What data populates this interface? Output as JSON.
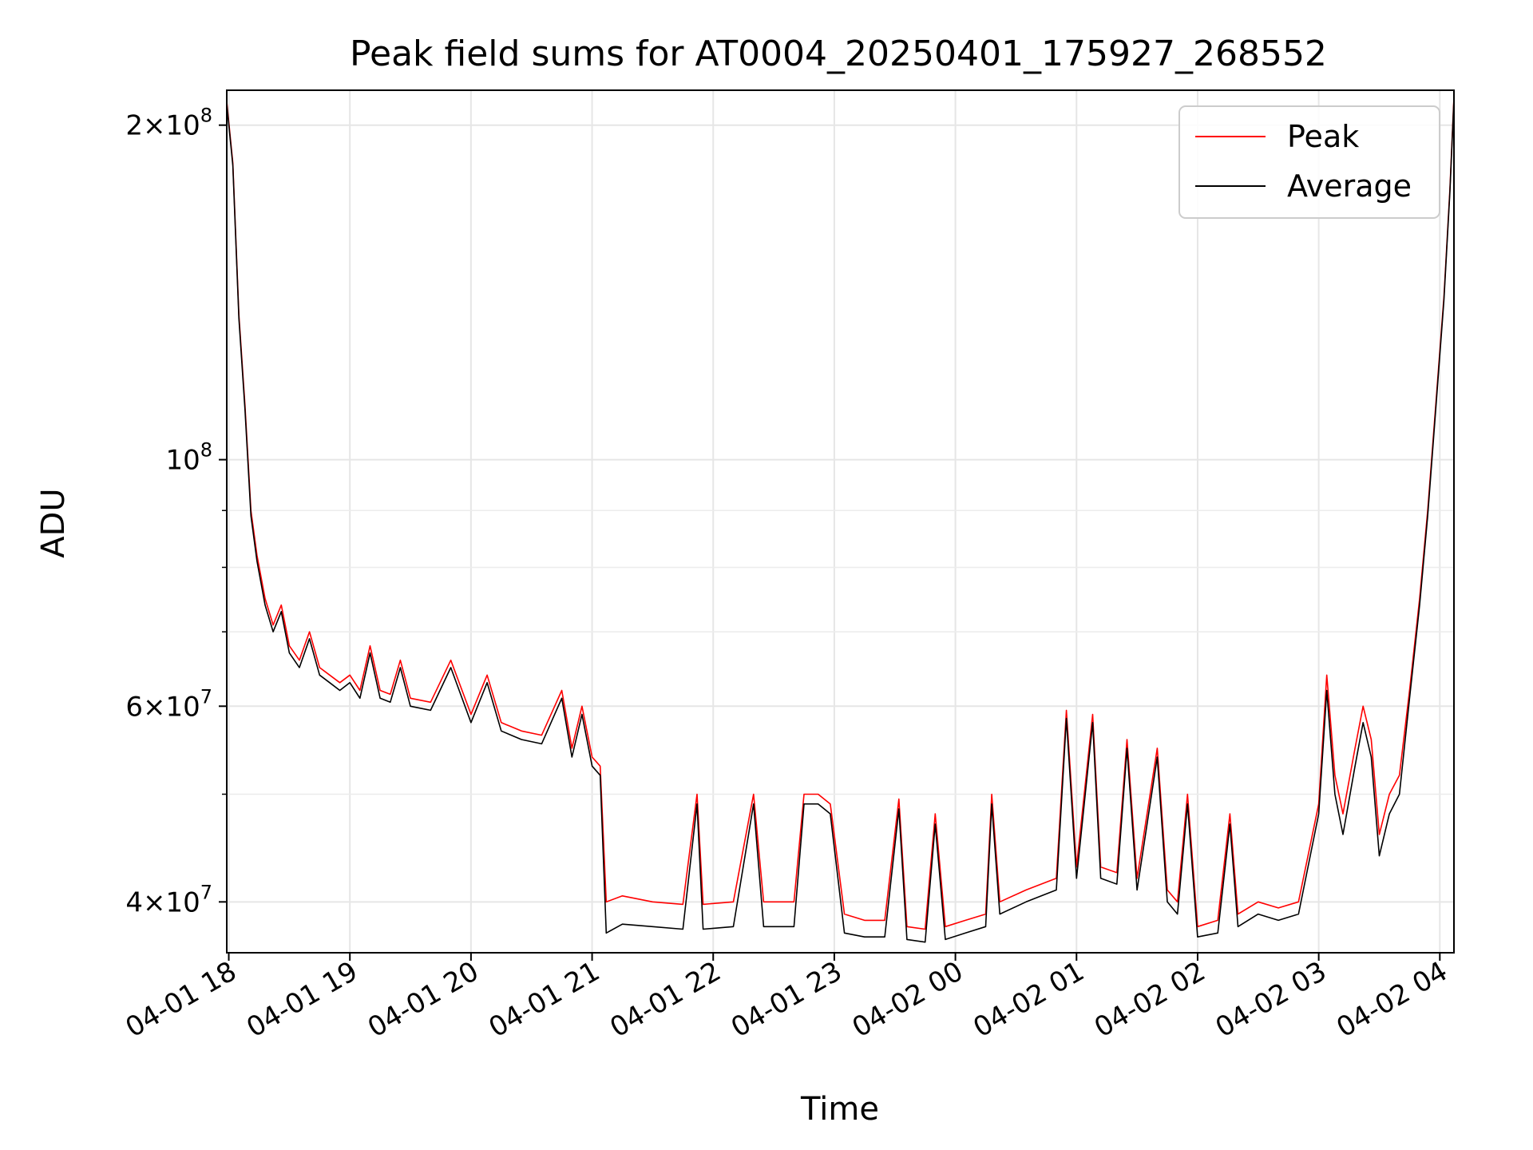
{
  "chart_data": {
    "type": "line",
    "title": "Peak field sums for AT0004_20250401_175927_268552",
    "xlabel": "Time",
    "ylabel": "ADU",
    "yscale": "log",
    "ylim": [
      36000000,
      215000000
    ],
    "xlim": [
      "2025-04-01 17:59",
      "2025-04-02 04:07"
    ],
    "x_ticks": [
      "04-01 18",
      "04-01 19",
      "04-01 20",
      "04-01 21",
      "04-01 22",
      "04-01 23",
      "04-02 00",
      "04-02 01",
      "04-02 02",
      "04-02 03",
      "04-02 04"
    ],
    "y_ticks": [
      {
        "value": 40000000,
        "mantissa": "4",
        "exponent": "7"
      },
      {
        "value": 60000000,
        "mantissa": "6",
        "exponent": "7"
      },
      {
        "value": 100000000,
        "mantissa": "",
        "exponent": "8"
      },
      {
        "value": 200000000,
        "mantissa": "2",
        "exponent": "8"
      }
    ],
    "grid": true,
    "legend_position": "top-right",
    "colors": {
      "peak": "#ff0000",
      "average": "#000000"
    },
    "series": [
      {
        "name": "Peak",
        "color": "#ff0000",
        "points": [
          [
            "2025-04-01 17:59",
            210000000
          ],
          [
            "2025-04-01 18:02",
            185000000
          ],
          [
            "2025-04-01 18:05",
            135000000
          ],
          [
            "2025-04-01 18:08",
            112000000
          ],
          [
            "2025-04-01 18:11",
            90000000
          ],
          [
            "2025-04-01 18:14",
            82000000
          ],
          [
            "2025-04-01 18:18",
            75000000
          ],
          [
            "2025-04-01 18:22",
            71000000
          ],
          [
            "2025-04-01 18:26",
            74000000
          ],
          [
            "2025-04-01 18:30",
            68000000
          ],
          [
            "2025-04-01 18:35",
            66000000
          ],
          [
            "2025-04-01 18:40",
            70000000
          ],
          [
            "2025-04-01 18:45",
            65000000
          ],
          [
            "2025-04-01 18:50",
            64000000
          ],
          [
            "2025-04-01 18:55",
            63000000
          ],
          [
            "2025-04-01 19:00",
            64000000
          ],
          [
            "2025-04-01 19:05",
            62000000
          ],
          [
            "2025-04-01 19:10",
            68000000
          ],
          [
            "2025-04-01 19:15",
            62000000
          ],
          [
            "2025-04-01 19:20",
            61500000
          ],
          [
            "2025-04-01 19:25",
            66000000
          ],
          [
            "2025-04-01 19:30",
            61000000
          ],
          [
            "2025-04-01 19:40",
            60500000
          ],
          [
            "2025-04-01 19:50",
            66000000
          ],
          [
            "2025-04-01 20:00",
            59000000
          ],
          [
            "2025-04-01 20:08",
            64000000
          ],
          [
            "2025-04-01 20:15",
            58000000
          ],
          [
            "2025-04-01 20:25",
            57000000
          ],
          [
            "2025-04-01 20:35",
            56500000
          ],
          [
            "2025-04-01 20:45",
            62000000
          ],
          [
            "2025-04-01 20:50",
            55000000
          ],
          [
            "2025-04-01 20:55",
            60000000
          ],
          [
            "2025-04-01 21:00",
            54000000
          ],
          [
            "2025-04-01 21:04",
            53000000
          ],
          [
            "2025-04-01 21:07",
            40000000
          ],
          [
            "2025-04-01 21:15",
            40500000
          ],
          [
            "2025-04-01 21:30",
            40000000
          ],
          [
            "2025-04-01 21:45",
            39800000
          ],
          [
            "2025-04-01 21:52",
            50000000
          ],
          [
            "2025-04-01 21:55",
            39800000
          ],
          [
            "2025-04-01 22:10",
            40000000
          ],
          [
            "2025-04-01 22:20",
            50000000
          ],
          [
            "2025-04-01 22:25",
            40000000
          ],
          [
            "2025-04-01 22:40",
            40000000
          ],
          [
            "2025-04-01 22:45",
            50000000
          ],
          [
            "2025-04-01 22:52",
            50000000
          ],
          [
            "2025-04-01 22:58",
            49000000
          ],
          [
            "2025-04-01 23:05",
            39000000
          ],
          [
            "2025-04-01 23:15",
            38500000
          ],
          [
            "2025-04-01 23:25",
            38500000
          ],
          [
            "2025-04-01 23:32",
            49500000
          ],
          [
            "2025-04-01 23:36",
            38000000
          ],
          [
            "2025-04-01 23:45",
            37800000
          ],
          [
            "2025-04-01 23:50",
            48000000
          ],
          [
            "2025-04-01 23:55",
            38000000
          ],
          [
            "2025-04-02 00:05",
            38500000
          ],
          [
            "2025-04-02 00:15",
            39000000
          ],
          [
            "2025-04-02 00:18",
            50000000
          ],
          [
            "2025-04-02 00:22",
            40000000
          ],
          [
            "2025-04-02 00:35",
            41000000
          ],
          [
            "2025-04-02 00:50",
            42000000
          ],
          [
            "2025-04-02 00:55",
            59500000
          ],
          [
            "2025-04-02 01:00",
            43000000
          ],
          [
            "2025-04-02 01:08",
            59000000
          ],
          [
            "2025-04-02 01:12",
            43000000
          ],
          [
            "2025-04-02 01:20",
            42500000
          ],
          [
            "2025-04-02 01:25",
            56000000
          ],
          [
            "2025-04-02 01:30",
            42000000
          ],
          [
            "2025-04-02 01:40",
            55000000
          ],
          [
            "2025-04-02 01:45",
            41000000
          ],
          [
            "2025-04-02 01:50",
            40000000
          ],
          [
            "2025-04-02 01:55",
            50000000
          ],
          [
            "2025-04-02 02:00",
            38000000
          ],
          [
            "2025-04-02 02:10",
            38500000
          ],
          [
            "2025-04-02 02:16",
            48000000
          ],
          [
            "2025-04-02 02:20",
            39000000
          ],
          [
            "2025-04-02 02:30",
            40000000
          ],
          [
            "2025-04-02 02:40",
            39500000
          ],
          [
            "2025-04-02 02:50",
            40000000
          ],
          [
            "2025-04-02 03:00",
            49000000
          ],
          [
            "2025-04-02 03:04",
            64000000
          ],
          [
            "2025-04-02 03:08",
            52000000
          ],
          [
            "2025-04-02 03:12",
            48000000
          ],
          [
            "2025-04-02 03:18",
            55000000
          ],
          [
            "2025-04-02 03:22",
            60000000
          ],
          [
            "2025-04-02 03:26",
            56000000
          ],
          [
            "2025-04-02 03:30",
            46000000
          ],
          [
            "2025-04-02 03:35",
            50000000
          ],
          [
            "2025-04-02 03:40",
            52000000
          ],
          [
            "2025-04-02 03:45",
            62000000
          ],
          [
            "2025-04-02 03:50",
            75000000
          ],
          [
            "2025-04-02 03:54",
            90000000
          ],
          [
            "2025-04-02 03:58",
            112000000
          ],
          [
            "2025-04-02 04:02",
            140000000
          ],
          [
            "2025-04-02 04:05",
            175000000
          ],
          [
            "2025-04-02 04:07",
            212000000
          ]
        ]
      },
      {
        "name": "Average",
        "color": "#000000",
        "points": [
          [
            "2025-04-01 17:59",
            209000000
          ],
          [
            "2025-04-01 18:02",
            184000000
          ],
          [
            "2025-04-01 18:05",
            134000000
          ],
          [
            "2025-04-01 18:08",
            111000000
          ],
          [
            "2025-04-01 18:11",
            89000000
          ],
          [
            "2025-04-01 18:14",
            81000000
          ],
          [
            "2025-04-01 18:18",
            74000000
          ],
          [
            "2025-04-01 18:22",
            70000000
          ],
          [
            "2025-04-01 18:26",
            73000000
          ],
          [
            "2025-04-01 18:30",
            67000000
          ],
          [
            "2025-04-01 18:35",
            65000000
          ],
          [
            "2025-04-01 18:40",
            69000000
          ],
          [
            "2025-04-01 18:45",
            64000000
          ],
          [
            "2025-04-01 18:50",
            63000000
          ],
          [
            "2025-04-01 18:55",
            62000000
          ],
          [
            "2025-04-01 19:00",
            63000000
          ],
          [
            "2025-04-01 19:05",
            61000000
          ],
          [
            "2025-04-01 19:10",
            67000000
          ],
          [
            "2025-04-01 19:15",
            61000000
          ],
          [
            "2025-04-01 19:20",
            60500000
          ],
          [
            "2025-04-01 19:25",
            65000000
          ],
          [
            "2025-04-01 19:30",
            60000000
          ],
          [
            "2025-04-01 19:40",
            59500000
          ],
          [
            "2025-04-01 19:50",
            65000000
          ],
          [
            "2025-04-01 20:00",
            58000000
          ],
          [
            "2025-04-01 20:08",
            63000000
          ],
          [
            "2025-04-01 20:15",
            57000000
          ],
          [
            "2025-04-01 20:25",
            56000000
          ],
          [
            "2025-04-01 20:35",
            55500000
          ],
          [
            "2025-04-01 20:45",
            61000000
          ],
          [
            "2025-04-01 20:50",
            54000000
          ],
          [
            "2025-04-01 20:55",
            59000000
          ],
          [
            "2025-04-01 21:00",
            53000000
          ],
          [
            "2025-04-01 21:04",
            52000000
          ],
          [
            "2025-04-01 21:07",
            37500000
          ],
          [
            "2025-04-01 21:15",
            38200000
          ],
          [
            "2025-04-01 21:30",
            38000000
          ],
          [
            "2025-04-01 21:45",
            37800000
          ],
          [
            "2025-04-01 21:52",
            49000000
          ],
          [
            "2025-04-01 21:55",
            37800000
          ],
          [
            "2025-04-01 22:10",
            38000000
          ],
          [
            "2025-04-01 22:20",
            49000000
          ],
          [
            "2025-04-01 22:25",
            38000000
          ],
          [
            "2025-04-01 22:40",
            38000000
          ],
          [
            "2025-04-01 22:45",
            49000000
          ],
          [
            "2025-04-01 22:52",
            49000000
          ],
          [
            "2025-04-01 22:58",
            48000000
          ],
          [
            "2025-04-01 23:05",
            37500000
          ],
          [
            "2025-04-01 23:15",
            37200000
          ],
          [
            "2025-04-01 23:25",
            37200000
          ],
          [
            "2025-04-01 23:32",
            48500000
          ],
          [
            "2025-04-01 23:36",
            37000000
          ],
          [
            "2025-04-01 23:45",
            36800000
          ],
          [
            "2025-04-01 23:50",
            47000000
          ],
          [
            "2025-04-01 23:55",
            37000000
          ],
          [
            "2025-04-02 00:05",
            37500000
          ],
          [
            "2025-04-02 00:15",
            38000000
          ],
          [
            "2025-04-02 00:18",
            49000000
          ],
          [
            "2025-04-02 00:22",
            39000000
          ],
          [
            "2025-04-02 00:35",
            40000000
          ],
          [
            "2025-04-02 00:50",
            41000000
          ],
          [
            "2025-04-02 00:55",
            58500000
          ],
          [
            "2025-04-02 01:00",
            42000000
          ],
          [
            "2025-04-02 01:08",
            58000000
          ],
          [
            "2025-04-02 01:12",
            42000000
          ],
          [
            "2025-04-02 01:20",
            41500000
          ],
          [
            "2025-04-02 01:25",
            55000000
          ],
          [
            "2025-04-02 01:30",
            41000000
          ],
          [
            "2025-04-02 01:40",
            54000000
          ],
          [
            "2025-04-02 01:45",
            40000000
          ],
          [
            "2025-04-02 01:50",
            39000000
          ],
          [
            "2025-04-02 01:55",
            49000000
          ],
          [
            "2025-04-02 02:00",
            37200000
          ],
          [
            "2025-04-02 02:10",
            37500000
          ],
          [
            "2025-04-02 02:16",
            47000000
          ],
          [
            "2025-04-02 02:20",
            38000000
          ],
          [
            "2025-04-02 02:30",
            39000000
          ],
          [
            "2025-04-02 02:40",
            38500000
          ],
          [
            "2025-04-02 02:50",
            39000000
          ],
          [
            "2025-04-02 03:00",
            48000000
          ],
          [
            "2025-04-02 03:04",
            62000000
          ],
          [
            "2025-04-02 03:08",
            50000000
          ],
          [
            "2025-04-02 03:12",
            46000000
          ],
          [
            "2025-04-02 03:18",
            53000000
          ],
          [
            "2025-04-02 03:22",
            58000000
          ],
          [
            "2025-04-02 03:26",
            54000000
          ],
          [
            "2025-04-02 03:30",
            44000000
          ],
          [
            "2025-04-02 03:35",
            48000000
          ],
          [
            "2025-04-02 03:40",
            50000000
          ],
          [
            "2025-04-02 03:45",
            61000000
          ],
          [
            "2025-04-02 03:50",
            74000000
          ],
          [
            "2025-04-02 03:54",
            89000000
          ],
          [
            "2025-04-02 03:58",
            111000000
          ],
          [
            "2025-04-02 04:02",
            139000000
          ],
          [
            "2025-04-02 04:05",
            174000000
          ],
          [
            "2025-04-02 04:07",
            211000000
          ]
        ]
      }
    ]
  }
}
